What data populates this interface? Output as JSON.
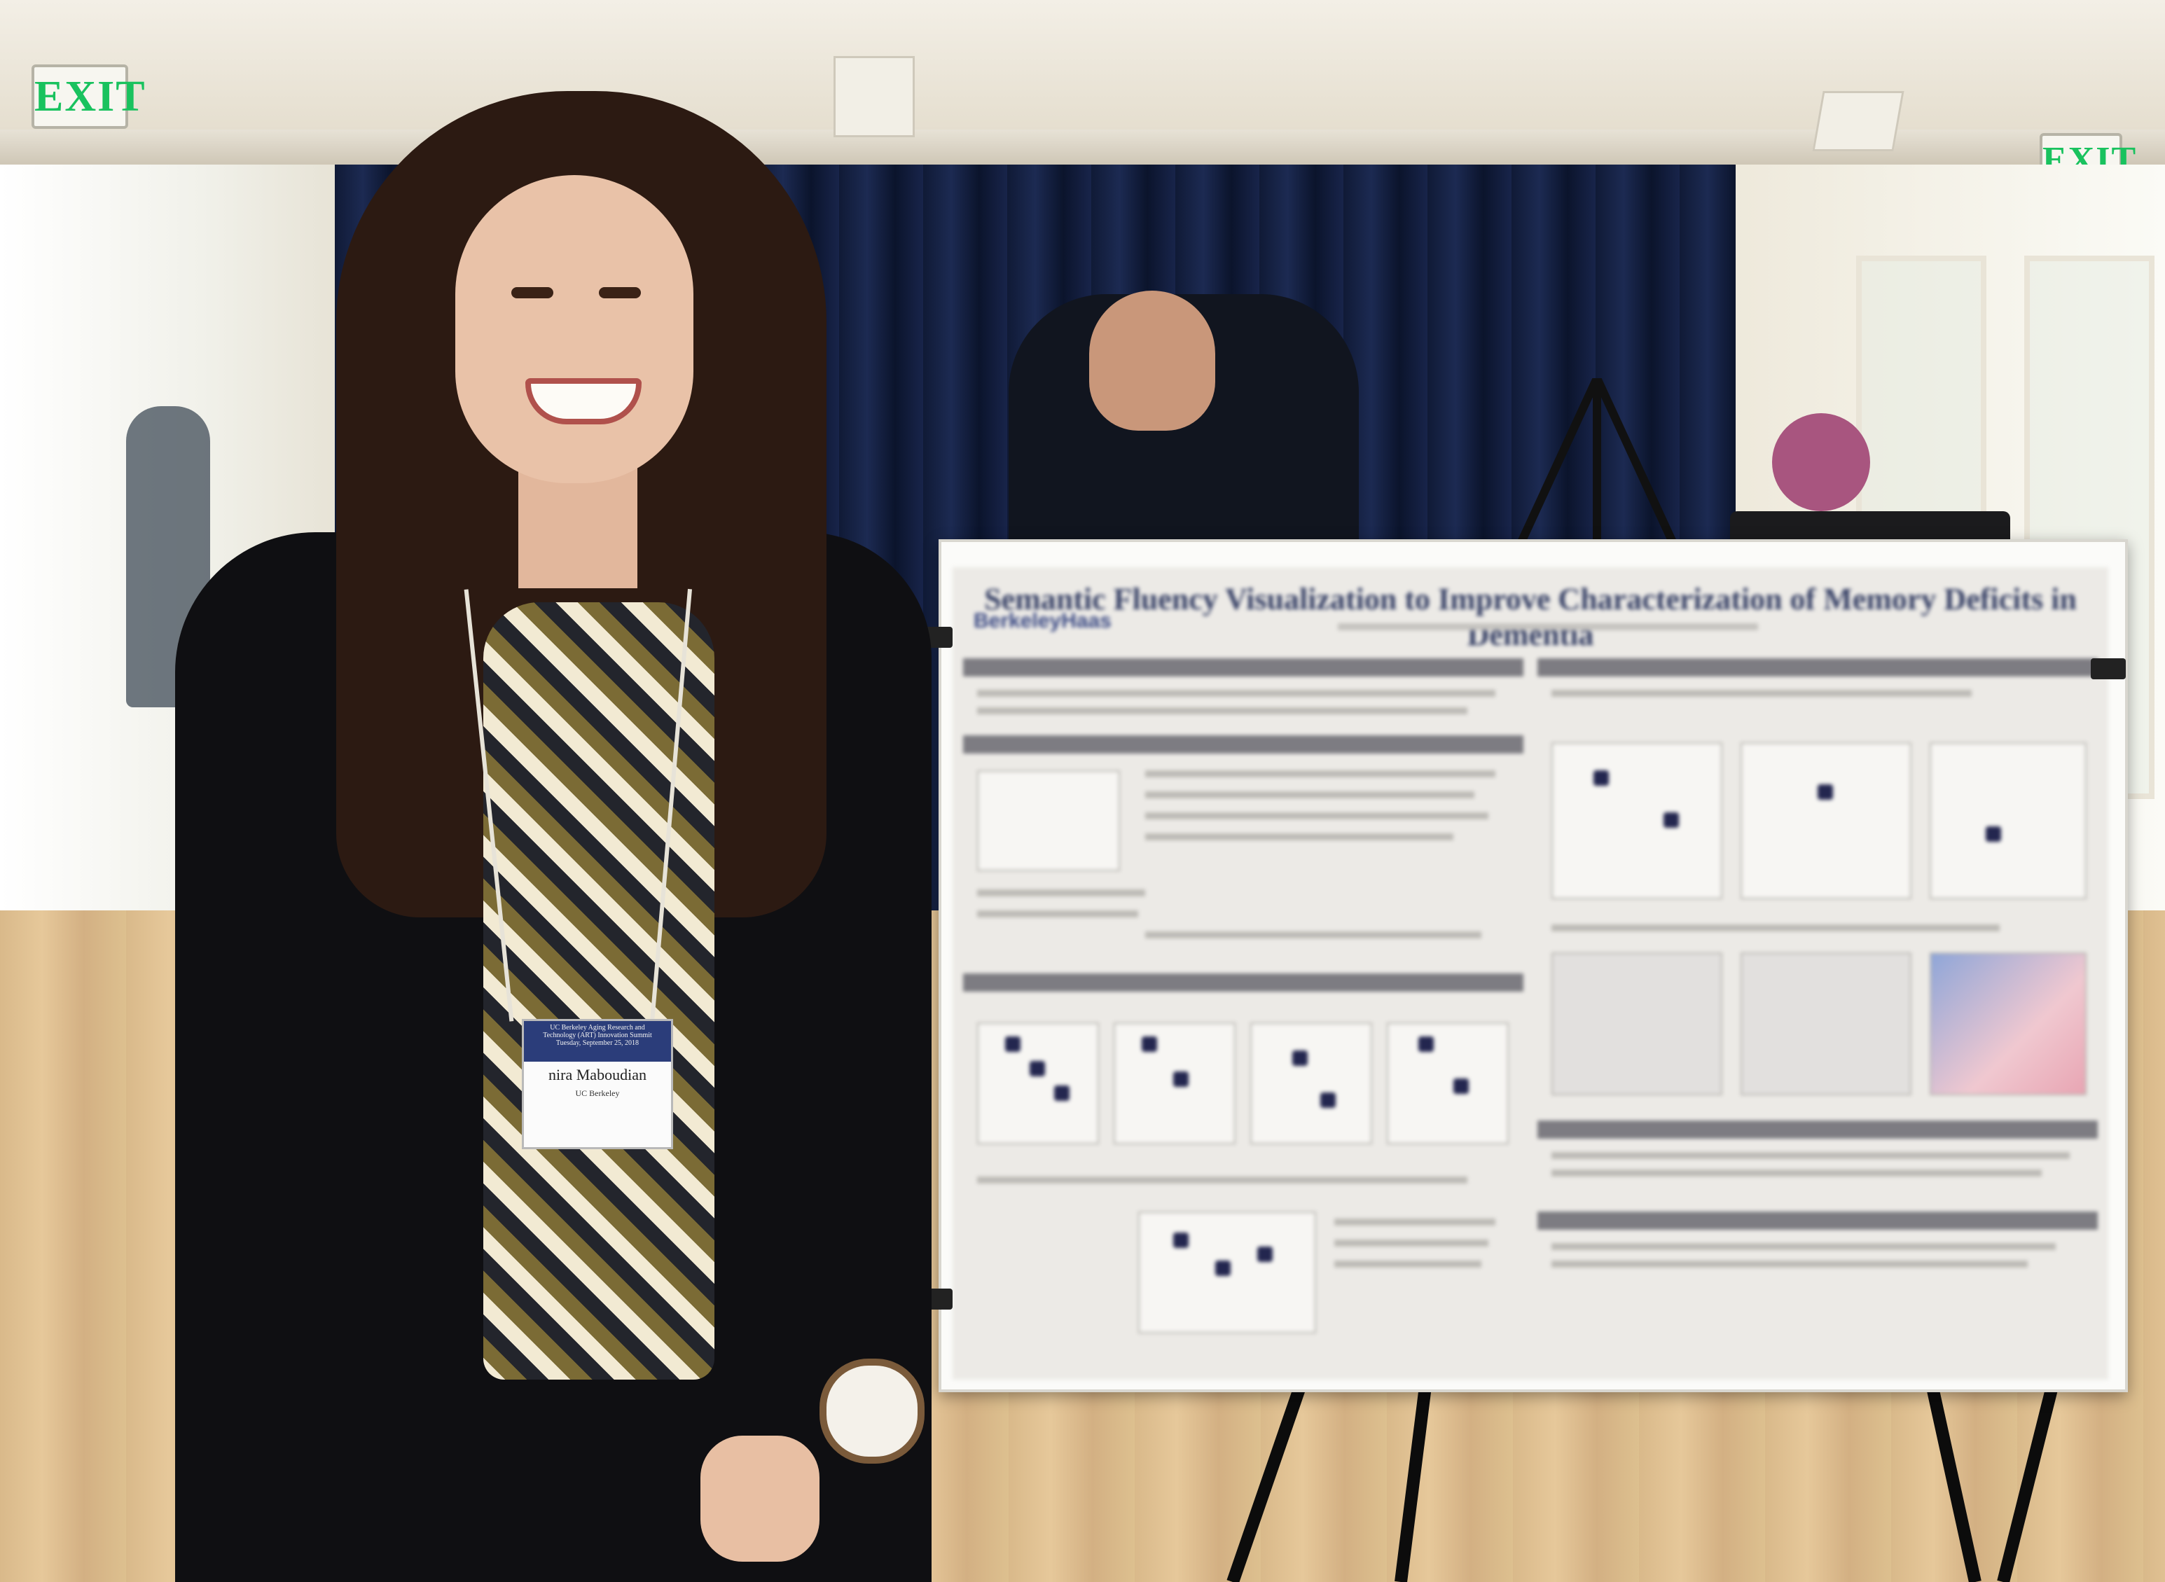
{
  "scene": {
    "exit_sign_left": "EXIT",
    "exit_sign_right": "EXIT"
  },
  "badge": {
    "event": "UC Berkeley Aging Research and\nTechnology (ART) Innovation Summit\nTuesday, September 25, 2018",
    "name": "nira Maboudian",
    "affiliation": "UC Berkeley"
  },
  "poster": {
    "title": "Semantic Fluency Visualization to Improve Characterization of Memory Deficits in Dementia",
    "logo": "BerkeleyHaas"
  },
  "colors": {
    "curtain": "#142045",
    "blazer": "#0f0f12",
    "hair": "#2c1a12",
    "poster_title": "#374166",
    "exit_green": "#19c25e",
    "badge_header": "#2b3d7a"
  }
}
